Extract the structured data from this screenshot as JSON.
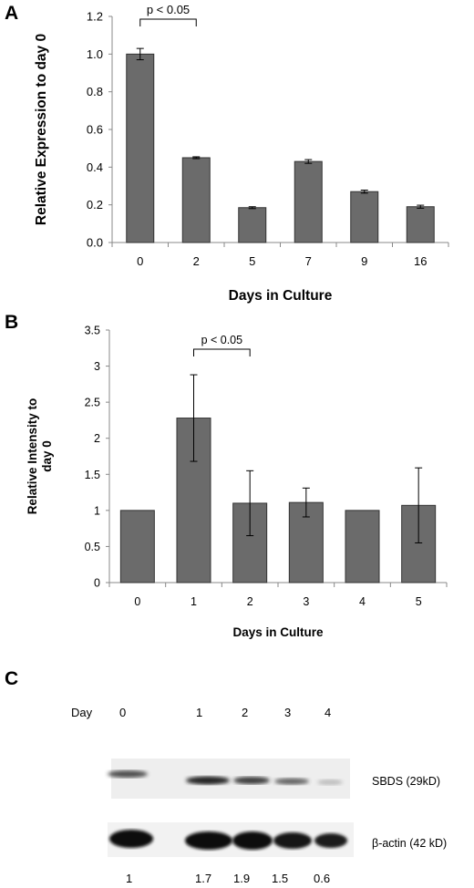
{
  "panels": {
    "A": "A",
    "B": "B",
    "C": "C"
  },
  "chart_data": [
    {
      "type": "bar",
      "panel": "A",
      "categories": [
        "0",
        "2",
        "5",
        "7",
        "9",
        "16"
      ],
      "values": [
        1.0,
        0.45,
        0.185,
        0.43,
        0.27,
        0.19
      ],
      "errors": [
        0.03,
        0.005,
        0.005,
        0.01,
        0.008,
        0.008
      ],
      "yticks": [
        "0.0",
        "0.2",
        "0.4",
        "0.6",
        "0.8",
        "1.0",
        "1.2"
      ],
      "ylim": [
        0,
        1.2
      ],
      "xlabel": "Days in Culture",
      "ylabel": "Relative Expression to day 0",
      "annotation": {
        "text": "p < 0.05",
        "from": 0,
        "to": 1
      },
      "bar_color": "#6b6b6b"
    },
    {
      "type": "bar",
      "panel": "B",
      "categories": [
        "0",
        "1",
        "2",
        "3",
        "4",
        "5"
      ],
      "values": [
        1.0,
        2.28,
        1.1,
        1.11,
        1.0,
        1.07
      ],
      "errors": [
        0.0,
        0.6,
        0.45,
        0.2,
        0.0,
        0.52
      ],
      "yticks": [
        "0",
        "0.5",
        "1",
        "1.5",
        "2",
        "2.5",
        "3",
        "3.5"
      ],
      "ylim": [
        0,
        3.5
      ],
      "xlabel": "Days in Culture",
      "ylabel": "Relative Intensity to day 0",
      "annotation": {
        "text": "p < 0.05",
        "from": 1,
        "to": 2
      },
      "bar_color": "#6b6b6b"
    }
  ],
  "blot": {
    "day_label": "Day",
    "days": [
      "0",
      "1",
      "2",
      "3",
      "4"
    ],
    "bands": {
      "sbds_label": "SBDS (29kD)",
      "actin_label": "β-actin (42 kD)"
    },
    "quantification": [
      "1",
      "1.7",
      "1.9",
      "1.5",
      "0.6"
    ],
    "sbds_intensity": [
      0.85,
      1.0,
      0.9,
      0.7,
      0.2
    ],
    "actin_intensity": [
      1.0,
      1.0,
      1.0,
      0.95,
      0.85
    ]
  }
}
